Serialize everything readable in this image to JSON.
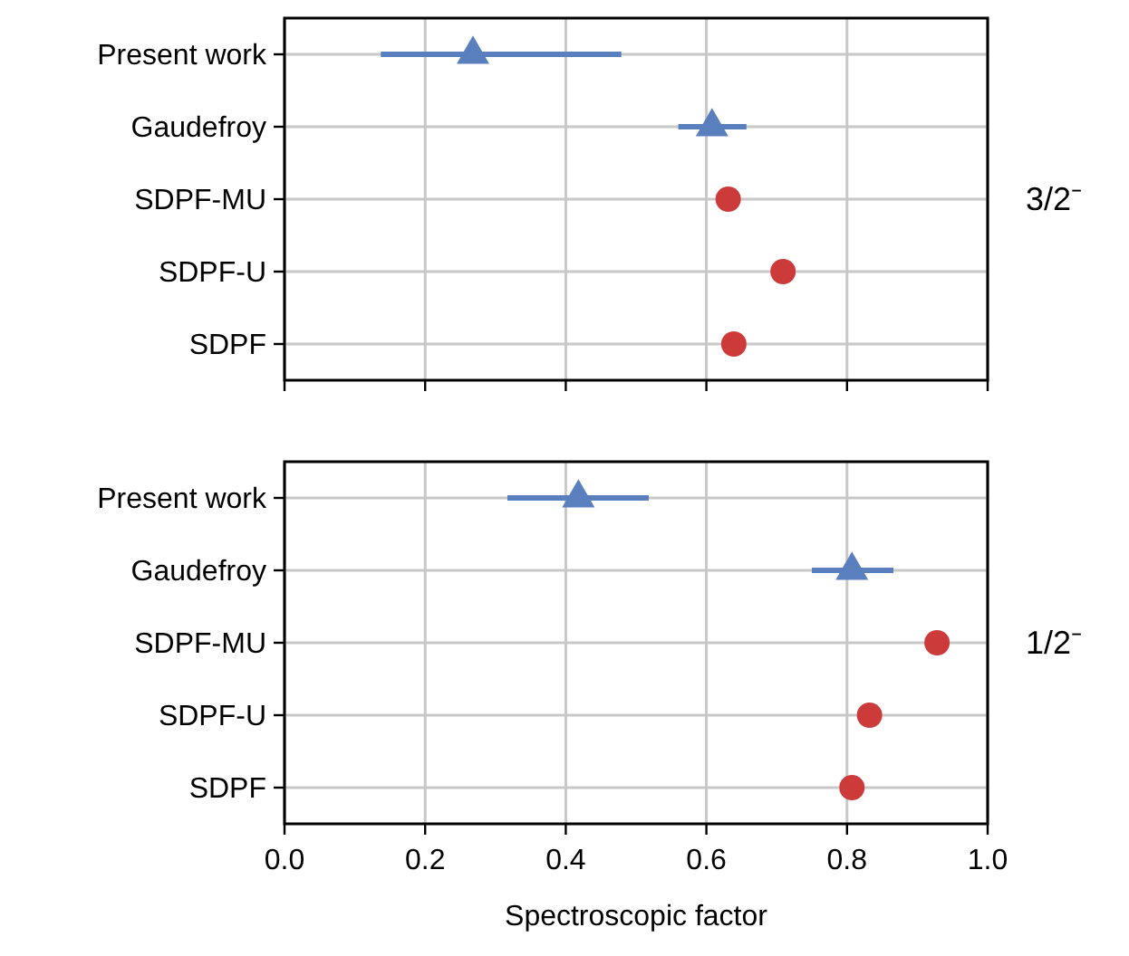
{
  "chart_data": [
    {
      "type": "scatter",
      "orientation": "horizontal",
      "categories": [
        "Present work",
        "Gaudefroy",
        "SDPF-MU",
        "SDPF-U",
        "SDPF"
      ],
      "xlim": [
        0,
        1
      ],
      "xticks": [
        0,
        0.2,
        0.4,
        0.6,
        0.8,
        1
      ],
      "tick_labels": "y",
      "grid": true,
      "annotations": [
        "3/2⁻"
      ],
      "series": [
        {
          "color": "#5a7fbf",
          "marker": "triangle",
          "values": [
            0.268,
            0.608,
            null,
            null,
            null
          ],
          "errors": [
            [
              0.137,
              0.479
            ],
            [
              0.56,
              0.657
            ],
            null,
            null,
            null
          ]
        },
        {
          "color": "#cc3a3a",
          "marker": "circle",
          "values": [
            null,
            null,
            0.631,
            0.709,
            0.639
          ]
        }
      ]
    },
    {
      "type": "scatter",
      "orientation": "horizontal",
      "categories": [
        "Present work",
        "Gaudefroy",
        "SDPF-MU",
        "SDPF-U",
        "SDPF"
      ],
      "xlim": [
        0,
        1
      ],
      "xticks": [
        {
          "value": 0,
          "label": "0.0"
        },
        0.2,
        0.4,
        0.6,
        0.8,
        {
          "value": 1,
          "label": "1.0"
        }
      ],
      "xlabel": "Spectroscopic factor",
      "grid": true,
      "annotations": [
        "1/2⁻"
      ],
      "series": [
        {
          "color": "#5a7fbf",
          "marker": "triangle",
          "values": [
            0.418,
            0.807,
            null,
            null,
            null
          ],
          "errors": [
            [
              0.317,
              0.518
            ],
            [
              0.75,
              0.866
            ],
            null,
            null,
            null
          ]
        },
        {
          "color": "#cc3a3a",
          "marker": "circle",
          "values": [
            null,
            null,
            0.928,
            0.832,
            0.807
          ]
        }
      ]
    }
  ]
}
